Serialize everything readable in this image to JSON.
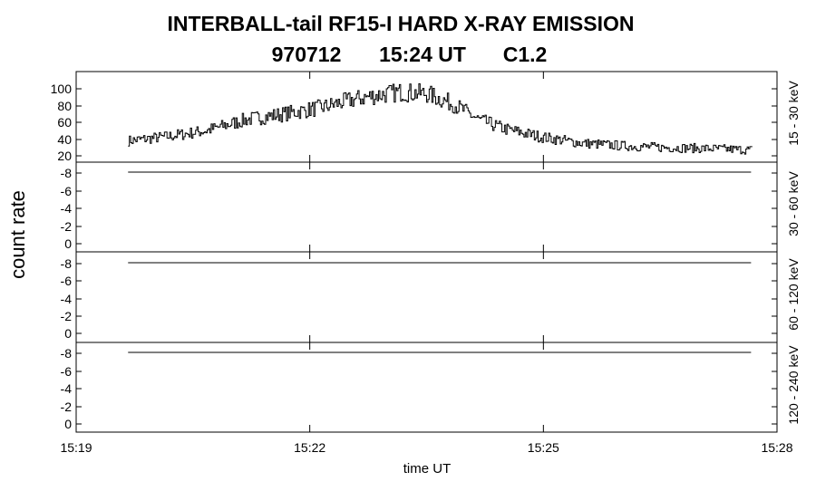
{
  "chart_data": {
    "type": "line",
    "title": "INTERBALL-tail  RF15-I  HARD  X-RAY  EMISSION",
    "subtitle": {
      "date": "970712",
      "time": "15:24 UT",
      "class": "C1.2"
    },
    "ylabel": "count rate",
    "xlabel": "time UT",
    "x_range": [
      "15:19",
      "15:28"
    ],
    "x_ticks": [
      "15:19",
      "15:22",
      "15:25",
      "15:28"
    ],
    "panels": [
      {
        "name": "15 - 30 keV",
        "ylim": [
          15,
          118
        ],
        "yticks": [
          "100",
          "80",
          "60",
          "40",
          "20"
        ],
        "ytick_values": [
          100,
          80,
          60,
          40,
          20
        ],
        "series_start": "15:19:40",
        "series_end": "15:27:40",
        "envelope_times": [
          "15:19:40",
          "15:20:10",
          "15:20:40",
          "15:21:10",
          "15:21:40",
          "15:22:10",
          "15:22:30",
          "15:22:50",
          "15:23:10",
          "15:23:30",
          "15:23:50",
          "15:24:10",
          "15:24:30",
          "15:25:00",
          "15:25:30",
          "15:26:00",
          "15:26:30",
          "15:27:00",
          "15:27:40"
        ],
        "envelope_values": [
          38,
          43,
          50,
          63,
          70,
          78,
          86,
          92,
          96,
          94,
          82,
          63,
          52,
          42,
          35,
          32,
          30,
          29,
          27
        ]
      },
      {
        "name": "30 - 60 keV",
        "ylim": [
          -1,
          -9
        ],
        "yticks": [
          "-8",
          "-6",
          "-4",
          "-2",
          "0"
        ],
        "ytick_values": [
          -8,
          -6,
          -4,
          -2,
          0
        ],
        "constant_value": -8.1
      },
      {
        "name": "60 - 120 keV",
        "ylim": [
          -1,
          -9
        ],
        "yticks": [
          "-8",
          "-6",
          "-4",
          "-2",
          "0"
        ],
        "ytick_values": [
          -8,
          -6,
          -4,
          -2,
          0
        ],
        "constant_value": -8.1
      },
      {
        "name": "120 - 240 keV",
        "ylim": [
          -1,
          -9
        ],
        "yticks": [
          "-8",
          "-6",
          "-4",
          "-2",
          "0"
        ],
        "ytick_values": [
          -8,
          -6,
          -4,
          -2,
          0
        ],
        "constant_value": -8.1
      }
    ]
  }
}
